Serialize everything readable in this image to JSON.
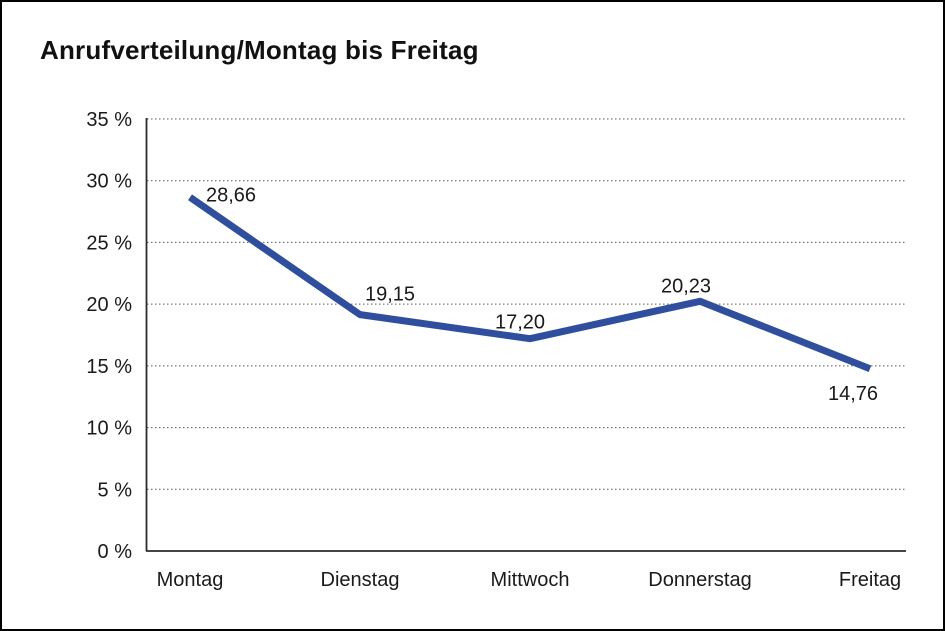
{
  "chart_data": {
    "type": "line",
    "title": "Anrufverteilung/Montag bis Freitag",
    "categories": [
      "Montag",
      "Dienstag",
      "Mittwoch",
      "Donnerstag",
      "Freitag"
    ],
    "values": [
      28.66,
      19.15,
      17.2,
      20.23,
      14.76
    ],
    "point_labels": [
      "28,66",
      "19,15",
      "17,20",
      "20,23",
      "14,76"
    ],
    "y_ticks": [
      {
        "value": 35,
        "label": "35 %"
      },
      {
        "value": 30,
        "label": "30 %"
      },
      {
        "value": 25,
        "label": "25 %"
      },
      {
        "value": 20,
        "label": "20 %"
      },
      {
        "value": 15,
        "label": "15 %"
      },
      {
        "value": 10,
        "label": "10 %"
      },
      {
        "value": 5,
        "label": "5 %"
      },
      {
        "value": 0,
        "label": "0 %"
      }
    ],
    "ylim": [
      0,
      35
    ],
    "xlabel": "",
    "ylabel": "",
    "grid": "horizontal-dotted",
    "legend": "none",
    "line_color": "#2F4F9E",
    "axis_color": "#2b2b2b",
    "grid_color": "#5a5a5a",
    "text_color": "#1a1a1a"
  }
}
